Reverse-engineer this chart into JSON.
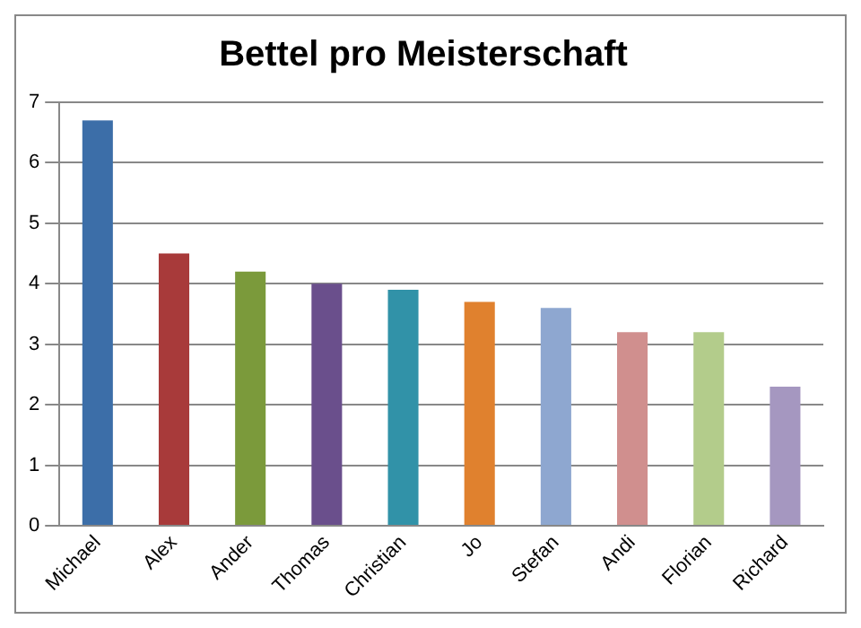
{
  "chart_data": {
    "type": "bar",
    "title": "Bettel pro Meisterschaft",
    "categories": [
      "Michael",
      "Alex",
      "Ander",
      "Thomas",
      "Christian",
      "Jo",
      "Stefan",
      "Andi",
      "Florian",
      "Richard"
    ],
    "values": [
      6.7,
      4.5,
      4.2,
      4.0,
      3.9,
      3.7,
      3.6,
      3.2,
      3.2,
      2.3
    ],
    "colors": [
      "#3c6ea8",
      "#a83a3a",
      "#7b9a3b",
      "#6a4f8c",
      "#3192a8",
      "#e0812e",
      "#8ea7d0",
      "#d08f8e",
      "#b3cc8b",
      "#a597c0"
    ],
    "ylim": [
      0,
      7
    ],
    "yticks": [
      0,
      1,
      2,
      3,
      4,
      5,
      6,
      7
    ],
    "grid": "y",
    "legend": false
  }
}
